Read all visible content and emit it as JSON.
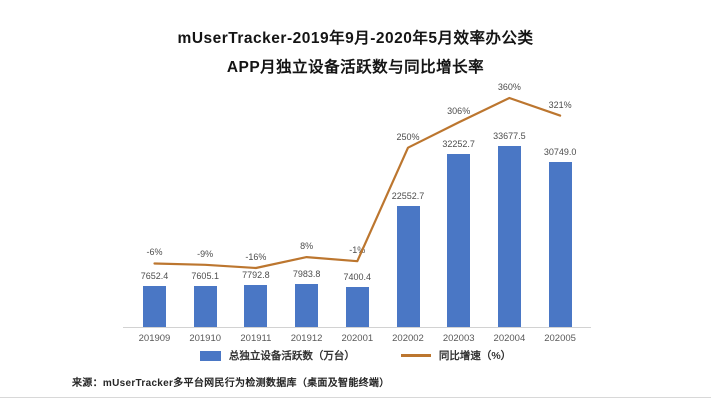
{
  "header": {
    "title_line1": "mUserTracker-2019年9月-2020年5月效率办公类",
    "title_line2": "APP月独立设备活跃数与同比增长率"
  },
  "chart_data": {
    "type": "bar",
    "title": "mUserTracker-2019年9月-2020年5月效率办公类 APP月独立设备活跃数与同比增长率",
    "categories": [
      "201909",
      "201910",
      "201911",
      "201912",
      "202001",
      "202002",
      "202003",
      "202004",
      "202005"
    ],
    "series": [
      {
        "name": "总独立设备活跃数（万台）",
        "type": "bar",
        "color": "#4a77c5",
        "values": [
          7652.4,
          7605.1,
          7792.8,
          7983.8,
          7400.4,
          22552.7,
          32252.7,
          33677.5,
          30749.0
        ],
        "labels": [
          "7652.4",
          "7605.1",
          "7792.8",
          "7983.8",
          "7400.4",
          "22552.7",
          "32252.7",
          "33677.5",
          "30749.0"
        ]
      },
      {
        "name": "同比增速（%）",
        "type": "line",
        "color": "#bc762f",
        "values": [
          -6,
          -9,
          -16,
          8,
          -1,
          250,
          306,
          360,
          321
        ],
        "labels": [
          "-6%",
          "-9%",
          "-16%",
          "8%",
          "-1%",
          "250%",
          "306%",
          "360%",
          "321%"
        ]
      }
    ],
    "xlabel": "",
    "ylabel": "",
    "bar_axis_visible_range": [
      0,
      33677.5
    ],
    "line_axis_visible_range": [
      -16,
      360
    ],
    "grid": false,
    "value_labels_shown": true,
    "legend_position": "bottom"
  },
  "legend": {
    "items": [
      {
        "label": "总独立设备活跃数（万台）",
        "swatch": "bar",
        "color": "#4a77c5"
      },
      {
        "label": "同比增速（%）",
        "swatch": "line",
        "color": "#bc762f"
      }
    ]
  },
  "footer": {
    "source": "来源：mUserTracker多平台网民行为检测数据库（桌面及智能终端）"
  }
}
